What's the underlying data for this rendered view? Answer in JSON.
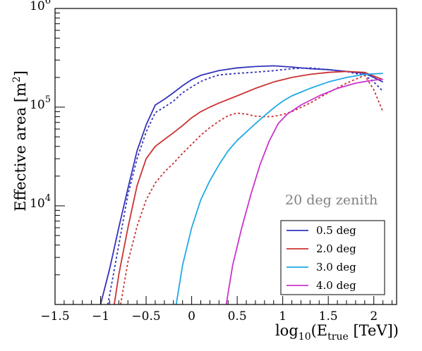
{
  "chart_data": {
    "type": "line",
    "title": "",
    "xlabel": "log10(Etrue [TeV])",
    "xlabel_parts": {
      "pre": "log",
      "sub1": "10",
      "mid": "(E",
      "sub2": "true",
      "post": " [TeV])"
    },
    "ylabel": "Effective area [m2]",
    "ylabel_parts": {
      "main": "Effective area [m",
      "sup": "2",
      "close": "]"
    },
    "xlim": [
      -1.5,
      2.25
    ],
    "ylim": [
      1000,
      1000000
    ],
    "yscale": "log",
    "grid": false,
    "legend_position": "bottom-right",
    "annotation": "20 deg zenith",
    "x_ticks": [
      {
        "v": -1.5,
        "label": "−1.5"
      },
      {
        "v": -1,
        "label": "−1"
      },
      {
        "v": -0.5,
        "label": "−0.5"
      },
      {
        "v": 0,
        "label": "0"
      },
      {
        "v": 0.5,
        "label": "0.5"
      },
      {
        "v": 1,
        "label": "1"
      },
      {
        "v": 1.5,
        "label": "1.5"
      },
      {
        "v": 2,
        "label": "2"
      }
    ],
    "y_ticks": [
      {
        "v": 10000,
        "base": "10",
        "exp": "4"
      },
      {
        "v": 100000,
        "base": "10",
        "exp": "5"
      },
      {
        "v": 1000000,
        "base": "10",
        "exp": "6"
      }
    ],
    "series": [
      {
        "name": "0.5 deg",
        "color": "#3333bb",
        "dashed": false,
        "x": [
          -1.0,
          -0.9,
          -0.8,
          -0.7,
          -0.6,
          -0.5,
          -0.4,
          -0.3,
          -0.2,
          -0.1,
          0.0,
          0.1,
          0.2,
          0.3,
          0.5,
          0.7,
          0.9,
          1.1,
          1.3,
          1.5,
          1.7,
          1.9,
          2.0,
          2.1
        ],
        "y": [
          1000,
          2300,
          6000,
          15000,
          36000,
          66000,
          105000,
          120000,
          140000,
          165000,
          190000,
          210000,
          222000,
          235000,
          250000,
          258000,
          262000,
          255000,
          245000,
          240000,
          230000,
          220000,
          200000,
          180000
        ]
      },
      {
        "name": "0.5 deg",
        "color": "#3333bb",
        "dashed": true,
        "legend": false,
        "x": [
          -0.92,
          -0.8,
          -0.7,
          -0.6,
          -0.5,
          -0.4,
          -0.3,
          -0.2,
          -0.1,
          0.0,
          0.1,
          0.2,
          0.3,
          0.5,
          0.7,
          0.9,
          1.1,
          1.3,
          1.5,
          1.7,
          1.9,
          2.0,
          2.1
        ],
        "y": [
          1000,
          4000,
          13000,
          30000,
          56000,
          88000,
          100000,
          115000,
          140000,
          160000,
          182000,
          198000,
          212000,
          220000,
          226000,
          234000,
          245000,
          250000,
          240000,
          230000,
          210000,
          180000,
          145000
        ]
      },
      {
        "name": "2.0 deg",
        "color": "#cc3333",
        "dashed": false,
        "x": [
          -0.85,
          -0.8,
          -0.7,
          -0.6,
          -0.5,
          -0.4,
          -0.3,
          -0.2,
          -0.1,
          0.0,
          0.1,
          0.2,
          0.3,
          0.5,
          0.7,
          0.9,
          1.1,
          1.3,
          1.5,
          1.7,
          1.9,
          2.1
        ],
        "y": [
          1000,
          2000,
          6000,
          16000,
          30000,
          40000,
          47000,
          55000,
          65000,
          78000,
          90000,
          100000,
          110000,
          130000,
          155000,
          180000,
          200000,
          215000,
          225000,
          230000,
          225000,
          190000
        ]
      },
      {
        "name": "2.0 deg",
        "color": "#cc3333",
        "dashed": true,
        "legend": false,
        "x": [
          -0.78,
          -0.7,
          -0.6,
          -0.5,
          -0.4,
          -0.3,
          -0.2,
          -0.1,
          0.0,
          0.1,
          0.2,
          0.3,
          0.4,
          0.5,
          0.6,
          0.7,
          0.8,
          0.9,
          1.0,
          1.1,
          1.3,
          1.5,
          1.7,
          1.9,
          2.0,
          2.1
        ],
        "y": [
          1000,
          2700,
          6200,
          11500,
          17000,
          22000,
          27000,
          34000,
          42000,
          52000,
          62000,
          72000,
          82000,
          87000,
          85000,
          81000,
          80000,
          80500,
          84000,
          90000,
          110000,
          140000,
          175000,
          210000,
          150000,
          90000
        ]
      },
      {
        "name": "3.0 deg",
        "color": "#1fa9e6",
        "dashed": false,
        "x": [
          -0.17,
          -0.1,
          0.0,
          0.1,
          0.2,
          0.3,
          0.4,
          0.5,
          0.6,
          0.7,
          0.8,
          0.9,
          1.0,
          1.1,
          1.3,
          1.5,
          1.7,
          1.9,
          2.1
        ],
        "y": [
          1000,
          2500,
          6000,
          11500,
          18000,
          26000,
          36000,
          46000,
          56000,
          68000,
          82000,
          98000,
          115000,
          130000,
          155000,
          180000,
          200000,
          215000,
          220000
        ]
      },
      {
        "name": "4.0 deg",
        "color": "#cc33cc",
        "dashed": false,
        "x": [
          0.38,
          0.45,
          0.55,
          0.65,
          0.75,
          0.85,
          0.95,
          1.05,
          1.2,
          1.4,
          1.6,
          1.8,
          1.95,
          2.05,
          2.1
        ],
        "y": [
          1000,
          2500,
          6000,
          13000,
          26000,
          45000,
          68000,
          85000,
          105000,
          130000,
          155000,
          175000,
          185000,
          190000,
          192000
        ]
      }
    ]
  }
}
